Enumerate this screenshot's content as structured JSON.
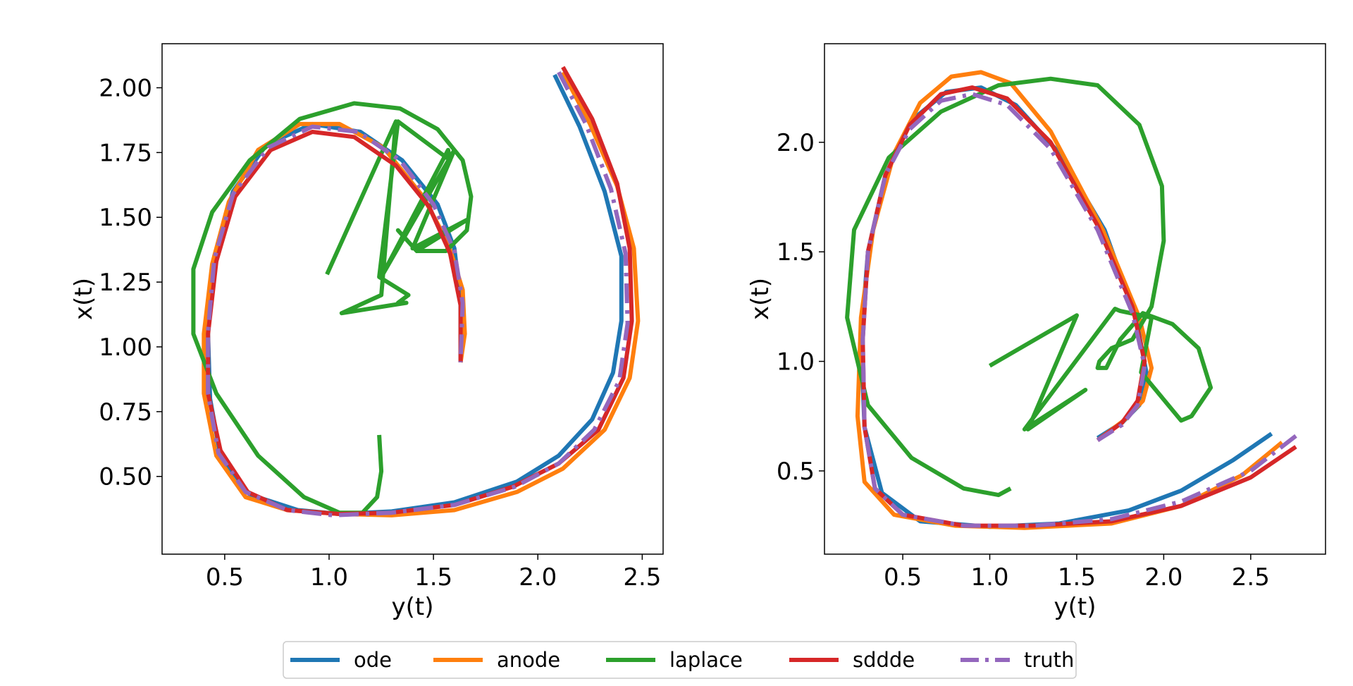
{
  "legend": {
    "entries": [
      {
        "key": "ode",
        "label": "ode"
      },
      {
        "key": "anode",
        "label": "anode"
      },
      {
        "key": "laplace",
        "label": "laplace"
      },
      {
        "key": "sdde",
        "label": "sddde"
      },
      {
        "key": "truth",
        "label": "truth"
      }
    ],
    "placement": "bottom-center"
  },
  "chart_data": [
    {
      "type": "line",
      "xlabel": "y(t)",
      "ylabel": "x(t)",
      "xlim": [
        0.2,
        2.6
      ],
      "ylim": [
        0.2,
        2.17
      ],
      "xticks": [
        "0.5",
        "1.0",
        "1.5",
        "2.0",
        "2.5"
      ],
      "xtick_values": [
        0.5,
        1.0,
        1.5,
        2.0,
        2.5
      ],
      "yticks": [
        "0.50",
        "0.75",
        "1.00",
        "1.25",
        "1.50",
        "1.75",
        "2.00"
      ],
      "ytick_values": [
        0.5,
        0.75,
        1.0,
        1.25,
        1.5,
        1.75,
        2.0
      ],
      "series": [
        {
          "name": "ode",
          "color": "#1f77b4",
          "style": "solid",
          "x": [
            2.08,
            2.2,
            2.32,
            2.4,
            2.4,
            2.36,
            2.26,
            2.1,
            1.9,
            1.6,
            1.3,
            1.05,
            0.85,
            0.62,
            0.48,
            0.43,
            0.42,
            0.45,
            0.54,
            0.7,
            0.92,
            1.15,
            1.35,
            1.52,
            1.6,
            1.63,
            1.63
          ],
          "y": [
            2.05,
            1.85,
            1.6,
            1.35,
            1.1,
            0.9,
            0.72,
            0.58,
            0.48,
            0.4,
            0.365,
            0.355,
            0.37,
            0.43,
            0.58,
            0.8,
            1.05,
            1.35,
            1.6,
            1.78,
            1.86,
            1.83,
            1.72,
            1.55,
            1.38,
            1.18,
            0.94
          ]
        },
        {
          "name": "anode",
          "color": "#ff7f0e",
          "style": "solid",
          "x": [
            2.12,
            2.25,
            2.38,
            2.46,
            2.48,
            2.44,
            2.32,
            2.12,
            1.9,
            1.6,
            1.3,
            1.05,
            0.8,
            0.6,
            0.46,
            0.4,
            0.4,
            0.44,
            0.52,
            0.66,
            0.86,
            1.05,
            1.26,
            1.45,
            1.57,
            1.64,
            1.65,
            1.63
          ],
          "y": [
            2.06,
            1.86,
            1.62,
            1.38,
            1.1,
            0.88,
            0.68,
            0.53,
            0.44,
            0.37,
            0.35,
            0.355,
            0.37,
            0.42,
            0.58,
            0.82,
            1.05,
            1.32,
            1.56,
            1.76,
            1.86,
            1.86,
            1.77,
            1.58,
            1.4,
            1.22,
            1.05,
            0.94
          ]
        },
        {
          "name": "laplace",
          "color": "#2ca02c",
          "style": "solid",
          "x": [
            1.24,
            1.25,
            1.23,
            1.16,
            1.05,
            0.88,
            0.66,
            0.46,
            0.35,
            0.35,
            0.44,
            0.62,
            0.86,
            1.12,
            1.34,
            1.52,
            1.64,
            1.68,
            1.66,
            1.56,
            1.42,
            1.33,
            1.42,
            1.66,
            1.4,
            1.6,
            1.25,
            1.57,
            1.58,
            1.33,
            1.24,
            1.38,
            1.33,
            1.37,
            1.06,
            1.25,
            1.32,
            0.99
          ],
          "y": [
            0.66,
            0.52,
            0.42,
            0.36,
            0.36,
            0.42,
            0.58,
            0.82,
            1.05,
            1.3,
            1.52,
            1.72,
            1.88,
            1.94,
            1.92,
            1.84,
            1.72,
            1.58,
            1.45,
            1.37,
            1.37,
            1.45,
            1.37,
            1.49,
            1.38,
            1.76,
            1.27,
            1.76,
            1.72,
            1.87,
            1.27,
            1.2,
            1.17,
            1.17,
            1.13,
            1.2,
            1.87,
            1.28
          ]
        },
        {
          "name": "sddde",
          "color": "#d62728",
          "style": "solid",
          "x": [
            2.12,
            2.26,
            2.38,
            2.44,
            2.45,
            2.41,
            2.29,
            2.1,
            1.88,
            1.6,
            1.3,
            1.05,
            0.8,
            0.61,
            0.48,
            0.42,
            0.42,
            0.46,
            0.55,
            0.72,
            0.92,
            1.12,
            1.32,
            1.48,
            1.58,
            1.63,
            1.63
          ],
          "y": [
            2.08,
            1.88,
            1.63,
            1.38,
            1.1,
            0.88,
            0.68,
            0.55,
            0.46,
            0.39,
            0.36,
            0.355,
            0.37,
            0.44,
            0.6,
            0.82,
            1.05,
            1.33,
            1.58,
            1.76,
            1.83,
            1.81,
            1.7,
            1.54,
            1.36,
            1.16,
            0.94
          ]
        },
        {
          "name": "truth",
          "color": "#9467bd",
          "style": "dashdot",
          "x": [
            2.1,
            2.23,
            2.35,
            2.42,
            2.43,
            2.39,
            2.27,
            2.1,
            1.89,
            1.6,
            1.3,
            1.02,
            0.8,
            0.6,
            0.47,
            0.42,
            0.42,
            0.45,
            0.54,
            0.71,
            0.92,
            1.14,
            1.34,
            1.5,
            1.6,
            1.64,
            1.63
          ],
          "y": [
            2.06,
            1.86,
            1.61,
            1.36,
            1.09,
            0.87,
            0.68,
            0.55,
            0.46,
            0.39,
            0.36,
            0.35,
            0.37,
            0.44,
            0.59,
            0.82,
            1.06,
            1.34,
            1.59,
            1.77,
            1.85,
            1.83,
            1.72,
            1.55,
            1.37,
            1.17,
            0.94
          ]
        }
      ]
    },
    {
      "type": "line",
      "xlabel": "y(t)",
      "ylabel": "x(t)",
      "xlim": [
        0.05,
        2.93
      ],
      "ylim": [
        0.12,
        2.45
      ],
      "xticks": [
        "0.5",
        "1.0",
        "1.5",
        "2.0",
        "2.5"
      ],
      "xtick_values": [
        0.5,
        1.0,
        1.5,
        2.0,
        2.5
      ],
      "yticks": [
        "0.5",
        "1.0",
        "1.5",
        "2.0"
      ],
      "ytick_values": [
        0.5,
        1.0,
        1.5,
        2.0
      ],
      "series": [
        {
          "name": "ode",
          "color": "#1f77b4",
          "style": "solid",
          "x": [
            2.62,
            2.4,
            2.1,
            1.8,
            1.4,
            1.0,
            0.6,
            0.38,
            0.28,
            0.26,
            0.3,
            0.4,
            0.55,
            0.75,
            0.95,
            1.15,
            1.4,
            1.66,
            1.84,
            1.9,
            1.86,
            1.76,
            1.62
          ],
          "y": [
            0.67,
            0.55,
            0.41,
            0.32,
            0.26,
            0.245,
            0.27,
            0.4,
            0.7,
            1.1,
            1.5,
            1.85,
            2.1,
            2.23,
            2.25,
            2.17,
            1.95,
            1.6,
            1.2,
            0.95,
            0.8,
            0.72,
            0.65
          ]
        },
        {
          "name": "anode",
          "color": "#ff7f0e",
          "style": "solid",
          "x": [
            2.68,
            2.45,
            2.1,
            1.7,
            1.2,
            0.8,
            0.45,
            0.28,
            0.24,
            0.26,
            0.33,
            0.45,
            0.6,
            0.78,
            0.95,
            1.12,
            1.35,
            1.65,
            1.86,
            1.93,
            1.88,
            1.77,
            1.62
          ],
          "y": [
            0.63,
            0.48,
            0.34,
            0.26,
            0.24,
            0.25,
            0.3,
            0.45,
            0.75,
            1.2,
            1.6,
            1.95,
            2.18,
            2.3,
            2.32,
            2.27,
            2.05,
            1.6,
            1.2,
            0.97,
            0.82,
            0.73,
            0.64
          ]
        },
        {
          "name": "laplace",
          "color": "#2ca02c",
          "style": "solid",
          "x": [
            1.12,
            1.05,
            0.85,
            0.55,
            0.3,
            0.18,
            0.22,
            0.42,
            0.72,
            1.05,
            1.35,
            1.62,
            1.86,
            1.99,
            2.0,
            1.93,
            1.82,
            1.7,
            1.63,
            1.62,
            1.67,
            1.75,
            1.88,
            2.05,
            2.2,
            2.27,
            2.16,
            2.1,
            1.87,
            1.93,
            1.75,
            1.72,
            1.2,
            1.55,
            1.22,
            1.5,
            1.0
          ],
          "y": [
            0.42,
            0.39,
            0.42,
            0.56,
            0.8,
            1.2,
            1.6,
            1.93,
            2.14,
            2.26,
            2.29,
            2.26,
            2.08,
            1.8,
            1.55,
            1.25,
            1.1,
            1.06,
            1.0,
            0.97,
            0.97,
            1.1,
            1.22,
            1.17,
            1.06,
            0.88,
            0.75,
            0.73,
            0.95,
            1.2,
            1.23,
            1.24,
            0.69,
            0.87,
            0.69,
            1.21,
            0.98
          ]
        },
        {
          "name": "sddde",
          "color": "#d62728",
          "style": "solid",
          "x": [
            2.76,
            2.5,
            2.1,
            1.7,
            1.25,
            0.85,
            0.5,
            0.34,
            0.28,
            0.27,
            0.3,
            0.4,
            0.54,
            0.72,
            0.9,
            1.1,
            1.35,
            1.62,
            1.82,
            1.89,
            1.85,
            1.76,
            1.62
          ],
          "y": [
            0.61,
            0.47,
            0.34,
            0.27,
            0.25,
            0.25,
            0.3,
            0.42,
            0.7,
            1.1,
            1.5,
            1.85,
            2.08,
            2.22,
            2.25,
            2.2,
            2.0,
            1.62,
            1.25,
            1.0,
            0.82,
            0.72,
            0.64
          ]
        },
        {
          "name": "truth",
          "color": "#9467bd",
          "style": "dashdot",
          "x": [
            2.76,
            2.5,
            2.1,
            1.7,
            1.25,
            0.85,
            0.5,
            0.34,
            0.28,
            0.27,
            0.3,
            0.4,
            0.54,
            0.72,
            0.9,
            1.1,
            1.35,
            1.62,
            1.82,
            1.89,
            1.85,
            1.76,
            1.62
          ],
          "y": [
            0.66,
            0.5,
            0.36,
            0.28,
            0.25,
            0.25,
            0.3,
            0.42,
            0.7,
            1.1,
            1.5,
            1.85,
            2.06,
            2.19,
            2.22,
            2.17,
            1.97,
            1.6,
            1.22,
            0.98,
            0.8,
            0.71,
            0.64
          ]
        }
      ]
    }
  ]
}
